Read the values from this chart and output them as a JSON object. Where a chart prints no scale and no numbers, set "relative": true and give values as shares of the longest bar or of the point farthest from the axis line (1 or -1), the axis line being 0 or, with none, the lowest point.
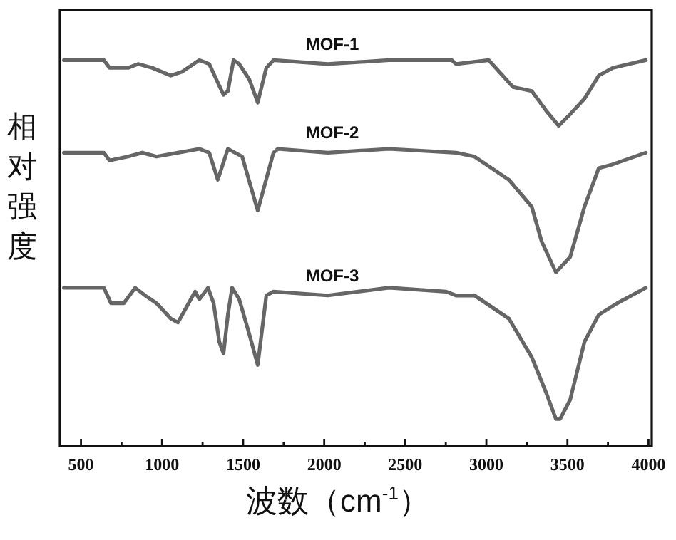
{
  "chart_data": {
    "type": "line",
    "xlabel": "波数（cm$^{-1}$）",
    "ylabel": "相对强度",
    "relative": true,
    "grid": false,
    "xlim": [
      370,
      4020
    ],
    "xticks": [
      500,
      {
        "value": 750,
        "label": null
      },
      1000,
      {
        "value": 1250,
        "label": null
      },
      1500,
      {
        "value": 1750,
        "label": null
      },
      2000,
      {
        "value": 2250,
        "label": null
      },
      2500,
      {
        "value": 2750,
        "label": null
      },
      3000,
      {
        "value": 3250,
        "label": null
      },
      3500,
      {
        "value": 3750,
        "label": null
      },
      4000
    ],
    "series": [
      {
        "name": "MOF-1",
        "color": "#666666",
        "x": [
          395,
          641,
          676,
          790,
          852,
          940,
          1054,
          1124,
          1230,
          1291,
          1335,
          1379,
          1406,
          1441,
          1476,
          1538,
          1590,
          1643,
          1687,
          2022,
          2400,
          2787,
          2813,
          3015,
          3165,
          3280,
          3367,
          3446,
          3517,
          3605,
          3693,
          3780,
          3983
        ],
        "values": [
          1.0,
          1.0,
          0.98,
          0.98,
          0.99,
          0.98,
          0.96,
          0.97,
          1.0,
          0.99,
          0.95,
          0.91,
          0.92,
          1.0,
          0.99,
          0.95,
          0.89,
          0.98,
          1.0,
          0.99,
          1.0,
          1.0,
          0.99,
          1.0,
          0.93,
          0.92,
          0.87,
          0.83,
          0.86,
          0.9,
          0.96,
          0.98,
          1.0
        ]
      },
      {
        "name": "MOF-2",
        "color": "#666666",
        "x": [
          395,
          641,
          676,
          790,
          878,
          966,
          1098,
          1230,
          1291,
          1344,
          1406,
          1494,
          1590,
          1687,
          1714,
          2022,
          2400,
          2813,
          2927,
          3139,
          3280,
          3341,
          3429,
          3517,
          3605,
          3693,
          3780,
          3983
        ],
        "values": [
          0.76,
          0.76,
          0.74,
          0.75,
          0.76,
          0.75,
          0.76,
          0.77,
          0.76,
          0.69,
          0.77,
          0.75,
          0.61,
          0.76,
          0.77,
          0.76,
          0.77,
          0.76,
          0.75,
          0.69,
          0.62,
          0.53,
          0.45,
          0.49,
          0.62,
          0.72,
          0.73,
          0.76
        ]
      },
      {
        "name": "MOF-3",
        "color": "#666666",
        "x": [
          395,
          641,
          685,
          764,
          834,
          896,
          966,
          1054,
          1098,
          1204,
          1230,
          1283,
          1318,
          1353,
          1379,
          1406,
          1432,
          1476,
          1538,
          1590,
          1643,
          1687,
          2022,
          2400,
          2752,
          2813,
          2927,
          3139,
          3280,
          3367,
          3429,
          3455,
          3517,
          3605,
          3693,
          3807,
          3983
        ],
        "values": [
          0.41,
          0.41,
          0.37,
          0.37,
          0.41,
          0.39,
          0.37,
          0.33,
          0.32,
          0.4,
          0.38,
          0.41,
          0.37,
          0.27,
          0.24,
          0.34,
          0.41,
          0.38,
          0.29,
          0.21,
          0.39,
          0.4,
          0.39,
          0.41,
          0.4,
          0.39,
          0.39,
          0.33,
          0.23,
          0.14,
          0.07,
          0.07,
          0.12,
          0.27,
          0.34,
          0.37,
          0.41
        ]
      }
    ]
  }
}
